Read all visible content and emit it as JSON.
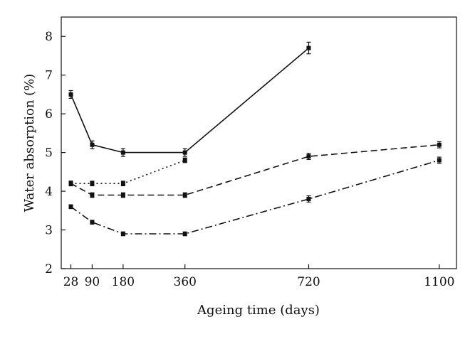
{
  "chart_data": {
    "type": "line",
    "title": "",
    "xlabel": "Ageing time (days)",
    "ylabel": "Water absorption (%)",
    "x_ticks": [
      28,
      90,
      180,
      360,
      720,
      1100
    ],
    "y_ticks": [
      2,
      3,
      4,
      5,
      6,
      7,
      8
    ],
    "xlim": [
      0,
      1150
    ],
    "ylim": [
      2,
      8.5
    ],
    "grid": false,
    "legend": "none",
    "series": [
      {
        "name": "series-1-solid",
        "style": "solid",
        "x": [
          28,
          90,
          180,
          360,
          720
        ],
        "y": [
          6.5,
          5.2,
          5.0,
          5.0,
          7.7
        ],
        "error": [
          0.1,
          0.1,
          0.1,
          0.1,
          0.15
        ]
      },
      {
        "name": "series-2-dotted",
        "style": "dotted",
        "x": [
          28,
          90,
          180,
          360
        ],
        "y": [
          4.2,
          4.2,
          4.2,
          4.8
        ],
        "error": [
          0.06,
          0.06,
          0.06,
          0.06
        ]
      },
      {
        "name": "series-3-dashed",
        "style": "dashed",
        "x": [
          28,
          90,
          180,
          360,
          720,
          1100
        ],
        "y": [
          4.2,
          3.9,
          3.9,
          3.9,
          4.9,
          5.2
        ],
        "error": [
          0.06,
          0.06,
          0.06,
          0.06,
          0.08,
          0.08
        ]
      },
      {
        "name": "series-4-dashdot",
        "style": "dashdot",
        "x": [
          28,
          90,
          180,
          360,
          720,
          1100
        ],
        "y": [
          3.6,
          3.2,
          2.9,
          2.9,
          3.8,
          4.8
        ],
        "error": [
          0.05,
          0.05,
          0.05,
          0.05,
          0.08,
          0.08
        ]
      }
    ]
  }
}
